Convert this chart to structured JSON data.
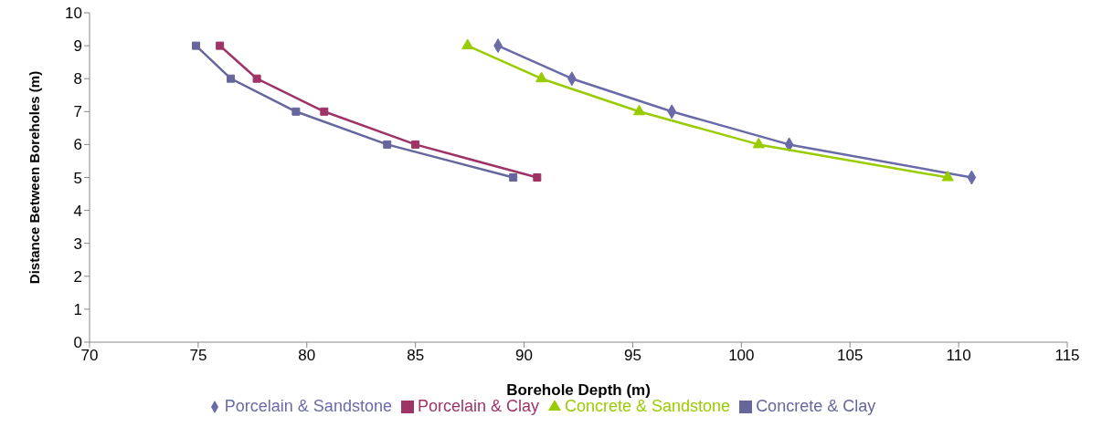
{
  "chart_data": {
    "type": "line",
    "xlabel": "Borehole Depth (m)",
    "ylabel": "Distance Between Boreholes (m)",
    "xlim": [
      70,
      115
    ],
    "xticks": [
      70,
      75,
      80,
      85,
      90,
      95,
      100,
      105,
      110,
      115
    ],
    "ylim": [
      0,
      10
    ],
    "yticks": [
      0,
      1,
      2,
      3,
      4,
      5,
      6,
      7,
      8,
      9,
      10
    ],
    "grid": false,
    "legend": "bottom",
    "line_style": "solid",
    "series": [
      {
        "name": "Porcelain & Sandstone",
        "color": "#6a6aa8",
        "marker": "diamond",
        "x": [
          88.8,
          92.2,
          96.8,
          102.2,
          110.6
        ],
        "values": [
          9,
          8,
          7,
          6,
          5
        ]
      },
      {
        "name": "Porcelain & Clay",
        "color": "#9e3366",
        "marker": "square",
        "x": [
          76.0,
          77.7,
          80.8,
          85.0,
          90.6
        ],
        "values": [
          9,
          8,
          7,
          6,
          5
        ]
      },
      {
        "name": "Concrete & Sandstone",
        "color": "#99cc00",
        "marker": "triangle",
        "x": [
          87.4,
          90.8,
          95.3,
          100.8,
          109.5
        ],
        "values": [
          9,
          8,
          7,
          6,
          5
        ]
      },
      {
        "name": "Concrete & Clay",
        "color": "#66669c",
        "marker": "square",
        "x": [
          74.9,
          76.5,
          79.5,
          83.7,
          89.5
        ],
        "values": [
          9,
          8,
          7,
          6,
          5
        ]
      }
    ]
  }
}
